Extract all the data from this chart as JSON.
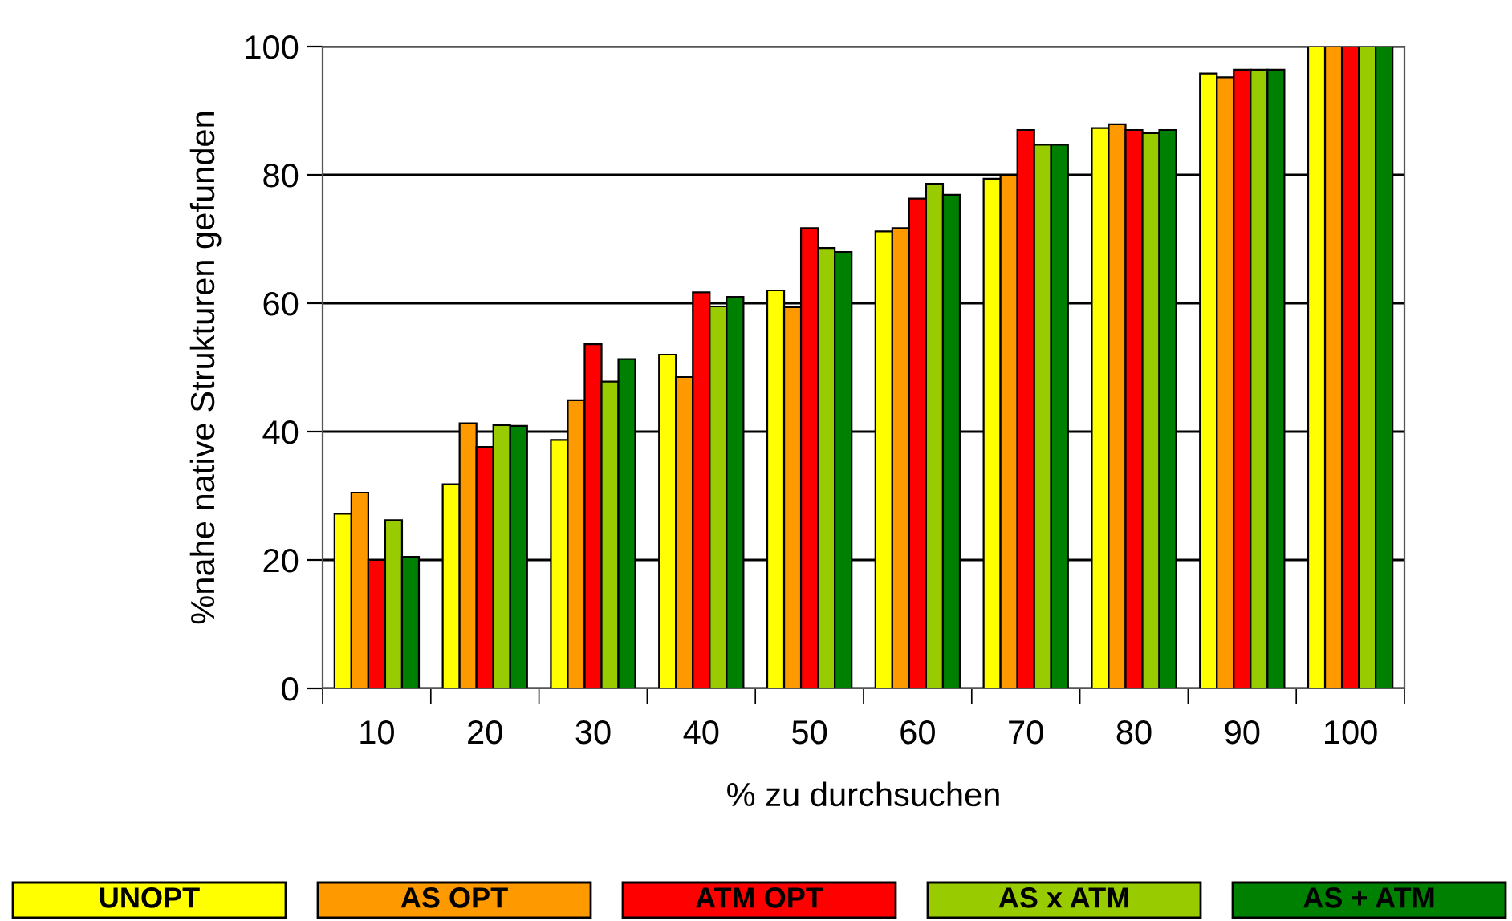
{
  "chart_data": {
    "type": "bar",
    "xlabel": "% zu durchsuchen",
    "ylabel": "%nahe native Strukturen gefunden",
    "categories": [
      "10",
      "20",
      "30",
      "40",
      "50",
      "60",
      "70",
      "80",
      "90",
      "100"
    ],
    "series": [
      {
        "name": "UNOPT",
        "color": "#ffff00",
        "values": [
          27.2,
          31.8,
          38.7,
          52,
          62,
          71.2,
          79.4,
          87.3,
          95.8,
          100
        ]
      },
      {
        "name": "AS OPT",
        "color": "#ff9900",
        "values": [
          30.5,
          41.3,
          44.9,
          48.5,
          59.4,
          71.7,
          79.9,
          87.9,
          95.2,
          100
        ]
      },
      {
        "name": "ATM OPT",
        "color": "#ff0000",
        "values": [
          20,
          37.6,
          53.6,
          61.7,
          71.7,
          76.3,
          87,
          87,
          96.4,
          100
        ]
      },
      {
        "name": "AS x ATM",
        "color": "#99cc00",
        "values": [
          26.2,
          41,
          47.8,
          59.5,
          68.6,
          78.6,
          84.7,
          86.5,
          96.4,
          100
        ]
      },
      {
        "name": "AS + ATM",
        "color": "#008000",
        "values": [
          20.5,
          40.9,
          51.3,
          61,
          68,
          76.9,
          84.7,
          87,
          96.4,
          100
        ]
      }
    ],
    "ylim": [
      0,
      100
    ],
    "yticks": [
      0,
      20,
      40,
      60,
      80,
      100
    ],
    "grid": "y",
    "legend": "bottom"
  }
}
